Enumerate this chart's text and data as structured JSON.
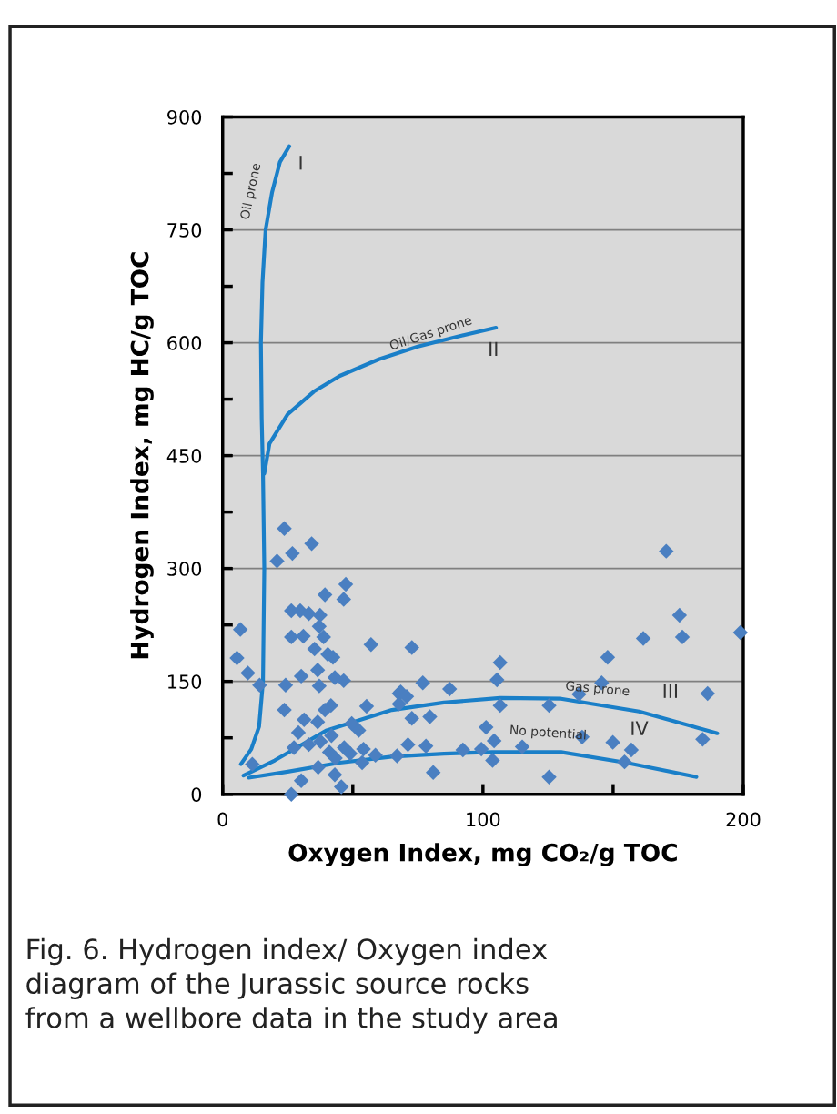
{
  "chart_data": {
    "type": "scatter",
    "xlabel": "Oxygen Index, mg CO₂/g TOC",
    "ylabel": "Hydrogen Index, mg HC/g TOC",
    "xlim": [
      0,
      200
    ],
    "ylim": [
      0,
      900
    ],
    "xticks": [
      0,
      {
        "value": 50,
        "label": null
      },
      100,
      {
        "value": 150,
        "label": null
      },
      200
    ],
    "yticks": [
      0,
      {
        "value": 75,
        "label": null
      },
      150,
      {
        "value": 225,
        "label": null
      },
      300,
      {
        "value": 375,
        "label": null
      },
      450,
      {
        "value": 525,
        "label": null
      },
      600,
      {
        "value": 675,
        "label": null
      },
      750,
      {
        "value": 825,
        "label": null
      },
      900
    ],
    "grid": "y",
    "series": [
      {
        "color": "#4a7fc1",
        "marker": "diamond",
        "x": [
          23.7,
          34.2,
          26.8,
          20.9,
          47.3,
          39.3,
          46.5,
          26.4,
          29.8,
          33.1,
          37.4,
          6.8,
          37.1,
          26.4,
          31.0,
          38.8,
          57.0,
          35.3,
          40.4,
          42.4,
          5.5,
          36.5,
          9.7,
          30.2,
          43.1,
          46.5,
          14.2,
          24.2,
          37.1,
          67.8,
          41.6,
          39.3,
          55.3,
          23.7,
          31.3,
          36.5,
          49.6,
          52.3,
          29.1,
          41.8,
          27.4,
          33.1,
          37.6,
          41.0,
          46.7,
          49.0,
          54.1,
          58.7,
          43.3,
          53.6,
          36.7,
          11.4,
          43.1,
          30.2,
          45.6,
          26.4,
          72.7,
          106.6,
          105.4,
          76.9,
          87.2,
          68.4,
          70.7,
          67.8,
          106.6,
          125.4,
          72.7,
          79.6,
          101.2,
          104.3,
          71.2,
          78.1,
          67.0,
          92.3,
          99.4,
          115.1,
          103.7,
          80.9,
          125.4,
          170.4,
          175.5,
          176.6,
          161.6,
          198.9,
          147.9,
          145.6,
          136.9,
          186.3,
          138.1,
          149.9,
          157.0,
          154.4,
          184.4
        ],
        "values": [
          353,
          333,
          320,
          310,
          279,
          265,
          259,
          244,
          244,
          240,
          238,
          219,
          223,
          209,
          210,
          209,
          199,
          193,
          186,
          182,
          181,
          165,
          161,
          157,
          155,
          151,
          145,
          145,
          144,
          134,
          118,
          112,
          117,
          112,
          99,
          96,
          94,
          85,
          82,
          78,
          62,
          66,
          70,
          56,
          62,
          54,
          60,
          52,
          48,
          42,
          36,
          40,
          26,
          18,
          10,
          0,
          195,
          175,
          152,
          148,
          140,
          136,
          130,
          120,
          118,
          118,
          101,
          103,
          89,
          71,
          66,
          64,
          51,
          59,
          60,
          63,
          45,
          29,
          23,
          323,
          238,
          209,
          207,
          215,
          182,
          148,
          133,
          134,
          76,
          69,
          59,
          43,
          73
        ]
      },
      {
        "type": "line",
        "color": "#1a7fc8",
        "x": [
          25.6,
          22,
          19,
          16.5,
          15.3,
          14.7,
          15,
          15.5,
          16,
          15.5,
          14,
          11,
          7
        ],
        "values": [
          861,
          840,
          800,
          750,
          680,
          600,
          500,
          426,
          300,
          150,
          90,
          60,
          40
        ]
      },
      {
        "type": "line",
        "color": "#1a7fc8",
        "x": [
          16,
          18,
          25,
          35,
          45,
          60,
          75,
          90,
          105
        ],
        "values": [
          426,
          466,
          505,
          535,
          556,
          578,
          595,
          608,
          620
        ]
      },
      {
        "type": "line",
        "color": "#1a7fc8",
        "x": [
          8,
          20,
          40,
          65,
          85,
          106.6,
          130,
          160,
          190
        ],
        "values": [
          25,
          45,
          85,
          112,
          122,
          128,
          127,
          110,
          81
        ]
      },
      {
        "type": "line",
        "color": "#1a7fc8",
        "x": [
          10,
          25,
          45,
          65,
          85,
          103.6,
          130,
          155,
          182
        ],
        "values": [
          22,
          30,
          42,
          50,
          54,
          56,
          56,
          42,
          23
        ]
      }
    ],
    "annotations": [
      "Oil prone",
      "I",
      "Oil/Gas prone",
      "II",
      "Gas prone",
      "III",
      "No potential",
      "IV",
      "Fig. 6. Hydrogen index/ Oxygen index\ndiagram of the Jurassic source rocks\nfrom a wellbore data in the study area"
    ]
  }
}
